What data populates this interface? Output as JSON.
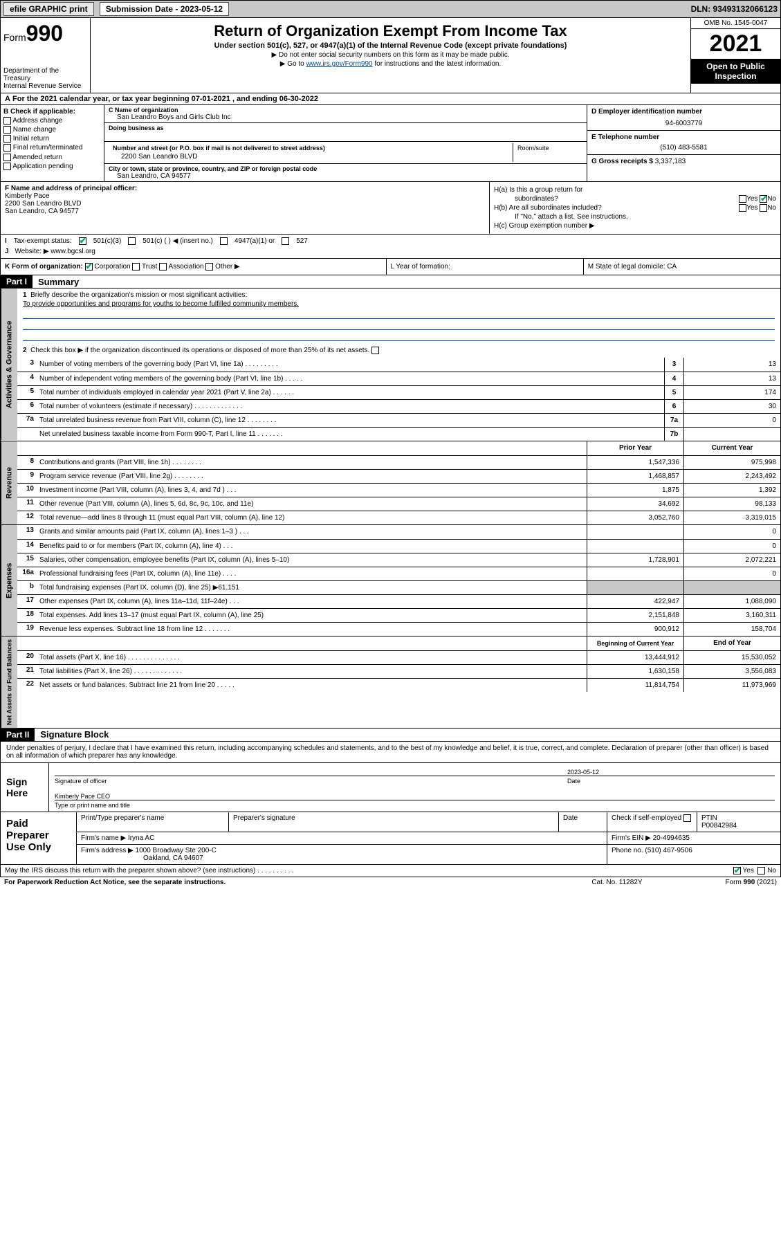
{
  "topbar": {
    "efile": "efile GRAPHIC print",
    "sub_label": "Submission Date - 2023-05-12",
    "dln": "DLN: 93493132066123"
  },
  "header": {
    "form_label": "Form",
    "form_no": "990",
    "dept": "Department of the Treasury",
    "irs": "Internal Revenue Service",
    "title": "Return of Organization Exempt From Income Tax",
    "sub": "Under section 501(c), 527, or 4947(a)(1) of the Internal Revenue Code (except private foundations)",
    "note1": "▶ Do not enter social security numbers on this form as it may be made public.",
    "note2_pre": "▶ Go to ",
    "note2_link": "www.irs.gov/Form990",
    "note2_post": " for instructions and the latest information.",
    "omb": "OMB No. 1545-0047",
    "year": "2021",
    "inspect1": "Open to Public",
    "inspect2": "Inspection"
  },
  "A": {
    "text": "For the 2021 calendar year, or tax year beginning 07-01-2021   , and ending 06-30-2022"
  },
  "B": {
    "label": "B Check if applicable:",
    "items": [
      "Address change",
      "Name change",
      "Initial return",
      "Final return/terminated",
      "Amended return",
      "Application pending"
    ]
  },
  "C": {
    "name_lbl": "C Name of organization",
    "name": "San Leandro Boys and Girls Club Inc",
    "dba_lbl": "Doing business as",
    "addr_lbl": "Number and street (or P.O. box if mail is not delivered to street address)",
    "room_lbl": "Room/suite",
    "addr": "2200 San Leandro BLVD",
    "city_lbl": "City or town, state or province, country, and ZIP or foreign postal code",
    "city": "San Leandro, CA  94577"
  },
  "D": {
    "lbl": "D Employer identification number",
    "val": "94-6003779"
  },
  "E": {
    "lbl": "E Telephone number",
    "val": "(510) 483-5581"
  },
  "G": {
    "lbl": "G Gross receipts $",
    "val": "3,337,183"
  },
  "F": {
    "lbl": "F Name and address of principal officer:",
    "name": "Kimberly Pace",
    "addr": "2200 San Leandro BLVD",
    "city": "San Leandro, CA  94577"
  },
  "H": {
    "a1": "H(a)  Is this a group return for",
    "a2": "subordinates?",
    "b1": "H(b)  Are all subordinates included?",
    "b2": "If \"No,\" attach a list. See instructions.",
    "c": "H(c)  Group exemption number ▶",
    "yes": "Yes",
    "no": "No"
  },
  "I": {
    "lbl": "Tax-exempt status:",
    "o1": "501(c)(3)",
    "o2": "501(c) (   ) ◀ (insert no.)",
    "o3": "4947(a)(1) or",
    "o4": "527"
  },
  "J": {
    "lbl": "Website: ▶",
    "val": "www.bgcsl.org"
  },
  "K": {
    "lbl": "K Form of organization:",
    "o1": "Corporation",
    "o2": "Trust",
    "o3": "Association",
    "o4": "Other ▶"
  },
  "L": {
    "lbl": "L Year of formation:"
  },
  "M": {
    "lbl": "M State of legal domicile: CA"
  },
  "part1": {
    "hdr": "Part I",
    "title": "Summary",
    "l1": "Briefly describe the organization's mission or most significant activities:",
    "l1v": "To provide opportunities and programs for youths to become fulfilled community members.",
    "l2": "Check this box ▶       if the organization discontinued its operations or disposed of more than 25% of its net assets.",
    "rows": [
      {
        "n": "3",
        "t": "Number of voting members of the governing body (Part VI, line 1a)   .    .    .    .    .    .    .    .    .",
        "b": "3",
        "v": "13"
      },
      {
        "n": "4",
        "t": "Number of independent voting members of the governing body (Part VI, line 1b)   .    .    .    .    .",
        "b": "4",
        "v": "13"
      },
      {
        "n": "5",
        "t": "Total number of individuals employed in calendar year 2021 (Part V, line 2a)   .    .    .    .    .    .",
        "b": "5",
        "v": "174"
      },
      {
        "n": "6",
        "t": "Total number of volunteers (estimate if necessary)   .    .    .    .    .    .    .    .    .    .    .    .    .",
        "b": "6",
        "v": "30"
      },
      {
        "n": "7a",
        "t": "Total unrelated business revenue from Part VIII, column (C), line 12   .    .    .    .    .    .    .    .",
        "b": "7a",
        "v": "0"
      },
      {
        "n": "",
        "t": "Net unrelated business taxable income from Form 990-T, Part I, line 11   .    .    .    .    .    .    .",
        "b": "7b",
        "v": ""
      }
    ],
    "hdr_prior": "Prior Year",
    "hdr_curr": "Current Year",
    "rev": [
      {
        "n": "8",
        "t": "Contributions and grants (Part VIII, line 1h)    .    .    .    .    .    .    .    .",
        "p": "1,547,336",
        "c": "975,998"
      },
      {
        "n": "9",
        "t": "Program service revenue (Part VIII, line 2g)    .    .    .    .    .    .    .    .",
        "p": "1,468,857",
        "c": "2,243,492"
      },
      {
        "n": "10",
        "t": "Investment income (Part VIII, column (A), lines 3, 4, and 7d )    .    .    .",
        "p": "1,875",
        "c": "1,392"
      },
      {
        "n": "11",
        "t": "Other revenue (Part VIII, column (A), lines 5, 6d, 8c, 9c, 10c, and 11e)",
        "p": "34,692",
        "c": "98,133"
      },
      {
        "n": "12",
        "t": "Total revenue—add lines 8 through 11 (must equal Part VIII, column (A), line 12)",
        "p": "3,052,760",
        "c": "3,319,015"
      }
    ],
    "exp": [
      {
        "n": "13",
        "t": "Grants and similar amounts paid (Part IX, column (A), lines 1–3 )   .    .    .",
        "p": "",
        "c": "0"
      },
      {
        "n": "14",
        "t": "Benefits paid to or for members (Part IX, column (A), line 4)   .    .    .",
        "p": "",
        "c": "0"
      },
      {
        "n": "15",
        "t": "Salaries, other compensation, employee benefits (Part IX, column (A), lines 5–10)",
        "p": "1,728,901",
        "c": "2,072,221"
      },
      {
        "n": "16a",
        "t": "Professional fundraising fees (Part IX, column (A), line 11e)    .    .    .    .",
        "p": "",
        "c": "0"
      },
      {
        "n": "b",
        "t": "Total fundraising expenses (Part IX, column (D), line 25) ▶61,151",
        "p": "grey",
        "c": "grey"
      },
      {
        "n": "17",
        "t": "Other expenses (Part IX, column (A), lines 11a–11d, 11f–24e)    .    .    .",
        "p": "422,947",
        "c": "1,088,090"
      },
      {
        "n": "18",
        "t": "Total expenses. Add lines 13–17 (must equal Part IX, column (A), line 25)",
        "p": "2,151,848",
        "c": "3,160,311"
      },
      {
        "n": "19",
        "t": "Revenue less expenses. Subtract line 18 from line 12   .    .    .    .    .    .    .",
        "p": "900,912",
        "c": "158,704"
      }
    ],
    "hdr_begin": "Beginning of Current Year",
    "hdr_end": "End of Year",
    "net": [
      {
        "n": "20",
        "t": "Total assets (Part X, line 16)   .    .    .    .    .    .    .    .    .    .    .    .    .    .",
        "p": "13,444,912",
        "c": "15,530,052"
      },
      {
        "n": "21",
        "t": "Total liabilities (Part X, line 26)   .    .    .    .    .    .    .    .    .    .    .    .    .",
        "p": "1,630,158",
        "c": "3,556,083"
      },
      {
        "n": "22",
        "t": "Net assets or fund balances. Subtract line 21 from line 20   .    .    .    .    .",
        "p": "11,814,754",
        "c": "11,973,969"
      }
    ],
    "vtab1": "Activities & Governance",
    "vtab2": "Revenue",
    "vtab3": "Expenses",
    "vtab4": "Net Assets or Fund Balances"
  },
  "part2": {
    "hdr": "Part II",
    "title": "Signature Block",
    "decl": "Under penalties of perjury, I declare that I have examined this return, including accompanying schedules and statements, and to the best of my knowledge and belief, it is true, correct, and complete. Declaration of preparer (other than officer) is based on all information of which preparer has any knowledge.",
    "sign_here": "Sign Here",
    "sig_officer": "Signature of officer",
    "date_lbl": "Date",
    "date": "2023-05-12",
    "name_title": "Kimberly Pace CEO",
    "type_name": "Type or print name and title",
    "paid": "Paid Preparer Use Only",
    "pt_name_lbl": "Print/Type preparer's name",
    "pt_sig_lbl": "Preparer's signature",
    "check_self": "Check       if self-employed",
    "ptin_lbl": "PTIN",
    "ptin": "P00842984",
    "firm_name_lbl": "Firm's name    ▶",
    "firm_name": "Iryna AC",
    "firm_ein_lbl": "Firm's EIN ▶",
    "firm_ein": "20-4994635",
    "firm_addr_lbl": "Firm's address ▶",
    "firm_addr": "1000 Broadway Ste 200-C",
    "firm_city": "Oakland, CA  94607",
    "phone_lbl": "Phone no.",
    "phone": "(510) 467-9506",
    "discuss": "May the IRS discuss this return with the preparer shown above? (see instructions)    .    .    .    .    .    .    .    .    .    .",
    "yes": "Yes",
    "no": "No"
  },
  "footer": {
    "l": "For Paperwork Reduction Act Notice, see the separate instructions.",
    "m": "Cat. No. 11282Y",
    "r": "Form 990 (2021)"
  }
}
